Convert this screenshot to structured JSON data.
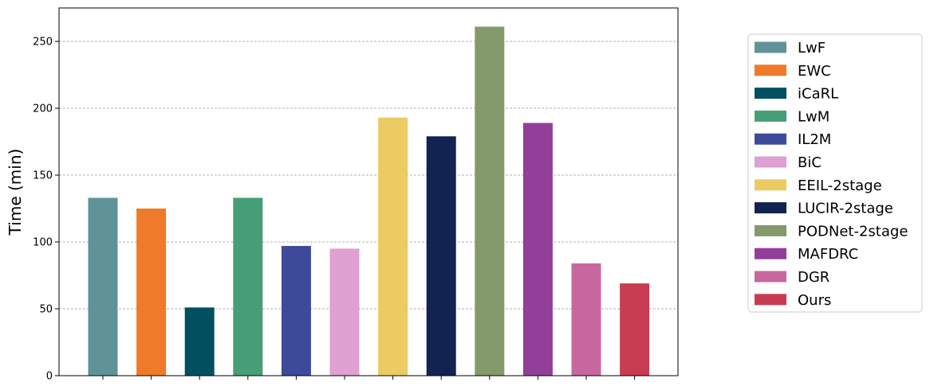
{
  "chart_data": {
    "type": "bar",
    "title": "",
    "xlabel": "",
    "ylabel": "Time (min)",
    "ylim": [
      0,
      275
    ],
    "yticks": [
      0,
      50,
      100,
      150,
      200,
      250
    ],
    "grid": "horizontal dashed",
    "legend_placement": "right",
    "categories": [
      "LwF",
      "EWC",
      "iCaRL",
      "LwM",
      "IL2M",
      "BiC",
      "EEIL-2stage",
      "LUCIR-2stage",
      "PODNet-2stage",
      "MAFDRC",
      "DGR",
      "Ours"
    ],
    "values": [
      133,
      125,
      51,
      133,
      97,
      95,
      193,
      179,
      261,
      189,
      84,
      69
    ],
    "colors": [
      "#5f9398",
      "#ee7a2a",
      "#024f60",
      "#469e76",
      "#3d4a99",
      "#dfa0d2",
      "#ebcb62",
      "#122351",
      "#849a6a",
      "#923f99",
      "#c8679f",
      "#c83c52"
    ]
  }
}
